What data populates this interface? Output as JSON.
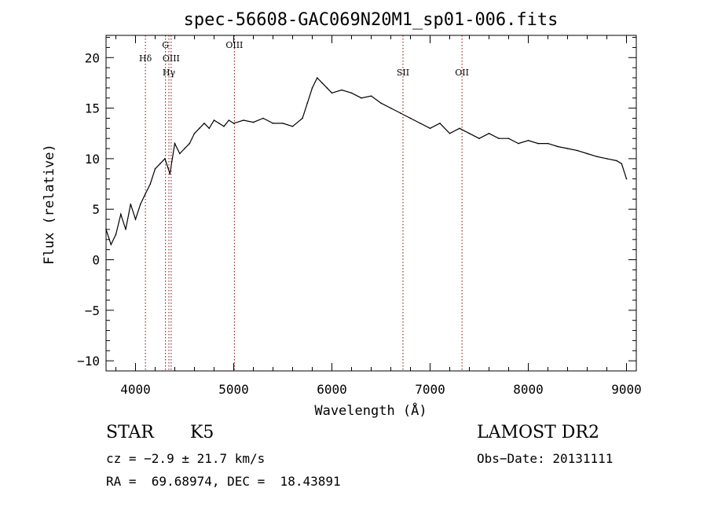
{
  "chart_data": {
    "type": "line",
    "title": "spec-56608-GAC069N20M1_sp01-006.fits",
    "xlabel": "Wavelength (Å)",
    "ylabel": "Flux (relative)",
    "xlim": [
      3700,
      9100
    ],
    "ylim": [
      -11,
      22.2
    ],
    "xticks": [
      4000,
      5000,
      6000,
      7000,
      8000,
      9000
    ],
    "yticks": [
      -10,
      -5,
      0,
      5,
      10,
      15,
      20
    ],
    "grid": false,
    "line_color": "#000000",
    "marker_color": "#8b0000",
    "series": [
      {
        "x": [
          3700,
          3750,
          3800,
          3850,
          3900,
          3950,
          4000,
          4050,
          4100,
          4150,
          4200,
          4250,
          4300,
          4350,
          4400,
          4450,
          4500,
          4550,
          4600,
          4650,
          4700,
          4750,
          4800,
          4850,
          4900,
          4950,
          5000,
          5100,
          5200,
          5300,
          5400,
          5500,
          5600,
          5700,
          5750,
          5800,
          5850,
          5900,
          5950,
          6000,
          6100,
          6200,
          6300,
          6400,
          6500,
          6600,
          6700,
          6800,
          6900,
          7000,
          7100,
          7200,
          7300,
          7400,
          7500,
          7600,
          7700,
          7800,
          7900,
          8000,
          8100,
          8200,
          8300,
          8400,
          8500,
          8600,
          8700,
          8800,
          8900,
          8950,
          9000
        ],
        "y": [
          3.0,
          1.5,
          2.5,
          4.5,
          3.0,
          5.5,
          4.0,
          5.5,
          6.5,
          7.5,
          9.0,
          9.5,
          10.0,
          8.5,
          11.5,
          10.5,
          11.0,
          11.5,
          12.5,
          13.0,
          13.5,
          13.0,
          13.8,
          13.5,
          13.2,
          13.8,
          13.5,
          13.8,
          13.6,
          14.0,
          13.5,
          13.5,
          13.2,
          14.0,
          15.5,
          17.0,
          18.0,
          17.5,
          17.0,
          16.5,
          16.8,
          16.5,
          16.0,
          16.2,
          15.5,
          15.0,
          14.5,
          14.0,
          13.5,
          13.0,
          13.5,
          12.5,
          13.0,
          12.5,
          12.0,
          12.5,
          12.0,
          12.0,
          11.5,
          11.8,
          11.5,
          11.5,
          11.2,
          11.0,
          10.8,
          10.5,
          10.2,
          10.0,
          9.8,
          9.5,
          8.0
        ]
      }
    ],
    "annotations": [
      {
        "label": "Hδ",
        "x": 4101,
        "row": 1
      },
      {
        "label": "G",
        "x": 4305,
        "row": 0
      },
      {
        "label": "OIII",
        "x": 4363,
        "row": 1
      },
      {
        "label": "Hγ",
        "x": 4340,
        "row": 2
      },
      {
        "label": "OIII",
        "x": 5007,
        "row": 0
      },
      {
        "label": "SII",
        "x": 6724,
        "row": 2
      },
      {
        "label": "OII",
        "x": 7325,
        "row": 2
      }
    ]
  },
  "info": {
    "object_class": "STAR",
    "subclass": "K5",
    "survey": "LAMOST DR2",
    "cz": "cz = −2.9 ± 21.7 km/s",
    "obs_date": "Obs−Date: 20131111",
    "coords": "RA =  69.68974, DEC =  18.43891"
  }
}
